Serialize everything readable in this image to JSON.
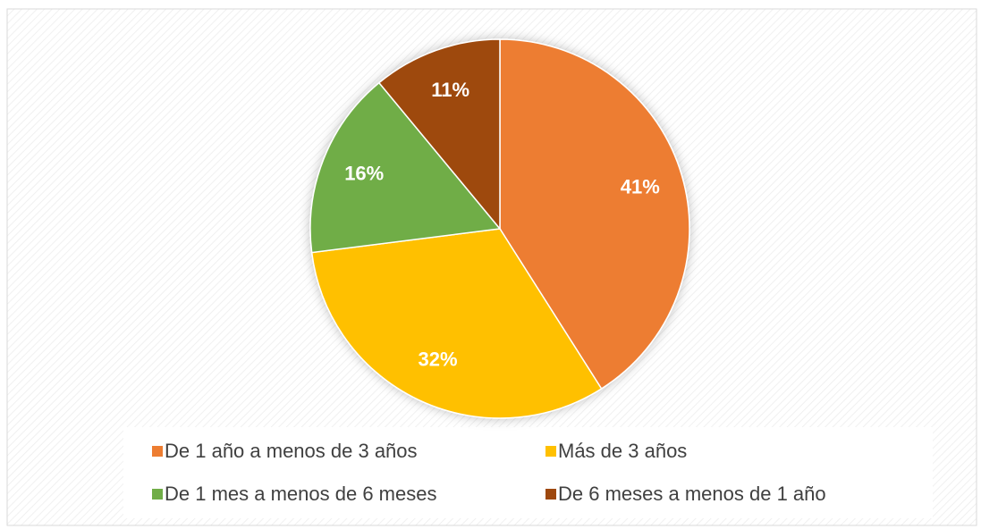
{
  "chart_data": {
    "type": "pie",
    "categories": [
      "De 1 año a menos de 3 años",
      "Más de 3 años",
      "De 1 mes a menos de 6 meses",
      "De 6 meses a menos de 1 año"
    ],
    "values": [
      41,
      32,
      16,
      11
    ],
    "value_labels": [
      "41%",
      "32%",
      "16%",
      "11%"
    ],
    "colors": [
      "#ED7D31",
      "#FFC000",
      "#70AD47",
      "#9E480E"
    ],
    "legend": "bottom"
  }
}
